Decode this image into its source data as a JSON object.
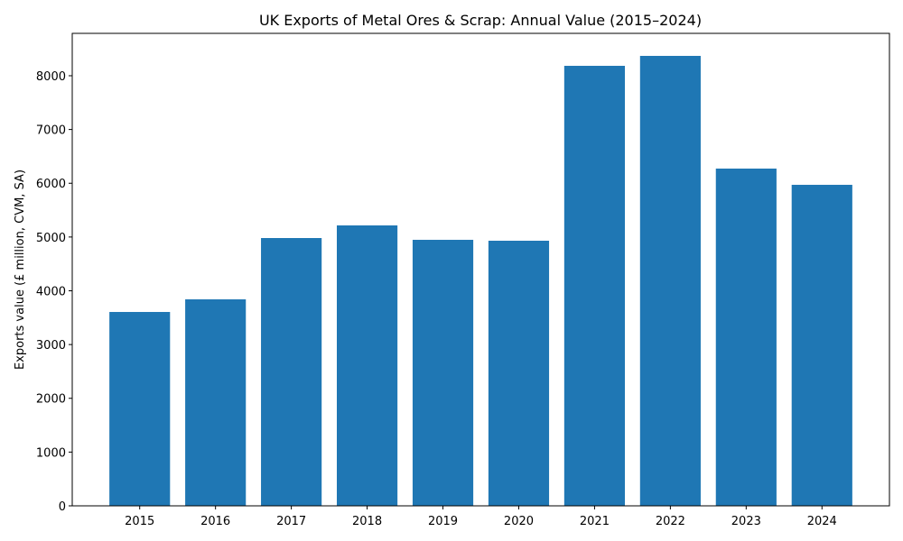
{
  "chart_data": {
    "type": "bar",
    "title": "UK Exports of Metal Ores & Scrap: Annual Value (2015–2024)",
    "xlabel": "",
    "ylabel": "Exports value (£ million, CVM, SA)",
    "categories": [
      "2015",
      "2016",
      "2017",
      "2018",
      "2019",
      "2020",
      "2021",
      "2022",
      "2023",
      "2024"
    ],
    "values": [
      3606,
      3841,
      4981,
      5216,
      4948,
      4931,
      8184,
      8369,
      6273,
      5971
    ],
    "ylim": [
      0,
      8788
    ],
    "yticks": [
      0,
      1000,
      2000,
      3000,
      4000,
      5000,
      6000,
      7000,
      8000
    ],
    "grid": false,
    "bar_color": "#1f77b4"
  }
}
